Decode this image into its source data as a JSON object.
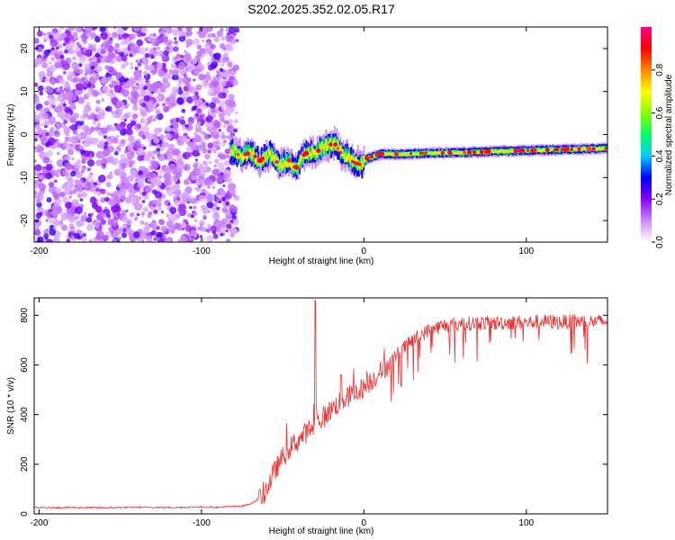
{
  "title": "S202.2025.352.02.05.R17",
  "chart_data": [
    {
      "type": "heatmap",
      "title": "S202.2025.352.02.05.R17",
      "xlabel": "Height of straight line (km)",
      "ylabel": "Frequency (Hz)",
      "xlim": [
        -203,
        150
      ],
      "ylim": [
        -25,
        25
      ],
      "xticks": [
        -200,
        -100,
        0,
        100
      ],
      "xtick_labels": [
        "-200",
        "-100",
        "0",
        "100"
      ],
      "yticks": [
        -20,
        -10,
        0,
        10,
        20
      ],
      "ytick_labels": [
        "-20",
        "-10",
        "0",
        "10",
        "20"
      ],
      "noise_region_x": [
        -203,
        -78
      ],
      "signal_track": {
        "x": [
          -82,
          -76,
          -70,
          -64,
          -58,
          -52,
          -46,
          -42,
          -38,
          -34,
          -30,
          -26,
          -22,
          -18,
          -14,
          -10,
          -6,
          -2,
          2,
          6,
          10,
          20,
          40,
          60,
          80,
          100,
          120,
          140,
          150
        ],
        "frequency": [
          -3.5,
          -5.0,
          -4.2,
          -6.0,
          -4.5,
          -7.0,
          -6.0,
          -8.0,
          -5.0,
          -4.0,
          -4.5,
          -3.0,
          -2.5,
          -2.0,
          -4.5,
          -5.5,
          -6.5,
          -7.0,
          -5.5,
          -5.0,
          -4.5,
          -4.6,
          -4.3,
          -4.2,
          -3.9,
          -3.7,
          -3.5,
          -3.3,
          -3.2
        ]
      },
      "colorbar": {
        "label": "Normalized spectral amplitude",
        "ticks": [
          0.0,
          0.2,
          0.4,
          0.6,
          0.8
        ],
        "tick_labels": [
          "0.0",
          "0.2",
          "0.4",
          "0.6",
          "0.8"
        ],
        "range": [
          0,
          1
        ],
        "colormap": [
          "#ffffff",
          "#cc88ff",
          "#8800ff",
          "#0000ff",
          "#00ccff",
          "#00ff66",
          "#88ff00",
          "#ffff00",
          "#ff8800",
          "#ff0000",
          "#ff0088"
        ]
      }
    },
    {
      "type": "line",
      "xlabel": "Height of straight line (km)",
      "ylabel": "SNR (10 * v/v)",
      "xlim": [
        -203,
        150
      ],
      "ylim": [
        0,
        870
      ],
      "xticks": [
        -200,
        -100,
        0,
        100
      ],
      "xtick_labels": [
        "-200",
        "-100",
        "0",
        "100"
      ],
      "yticks": [
        0,
        200,
        400,
        600,
        800
      ],
      "ytick_labels": [
        "0",
        "200",
        "400",
        "600",
        "800"
      ],
      "color": "#ee3333",
      "series": [
        {
          "name": "SNR",
          "x": [
            -203,
            -180,
            -160,
            -140,
            -120,
            -100,
            -90,
            -80,
            -75,
            -70,
            -65,
            -60,
            -55,
            -50,
            -45,
            -40,
            -35,
            -30,
            -25,
            -20,
            -15,
            -10,
            -5,
            0,
            5,
            10,
            15,
            20,
            25,
            30,
            35,
            40,
            45,
            50,
            60,
            70,
            80,
            90,
            100,
            110,
            120,
            130,
            140,
            150
          ],
          "y": [
            25,
            26,
            25,
            27,
            26,
            28,
            27,
            30,
            32,
            40,
            60,
            100,
            170,
            230,
            270,
            300,
            330,
            360,
            390,
            420,
            450,
            470,
            490,
            510,
            540,
            570,
            600,
            640,
            670,
            700,
            720,
            740,
            750,
            760,
            765,
            770,
            768,
            772,
            770,
            775,
            772,
            776,
            774,
            775
          ],
          "spikes": [
            [
              -30,
              860
            ],
            [
              -14,
              560
            ],
            [
              -47,
              260
            ]
          ]
        }
      ]
    }
  ]
}
